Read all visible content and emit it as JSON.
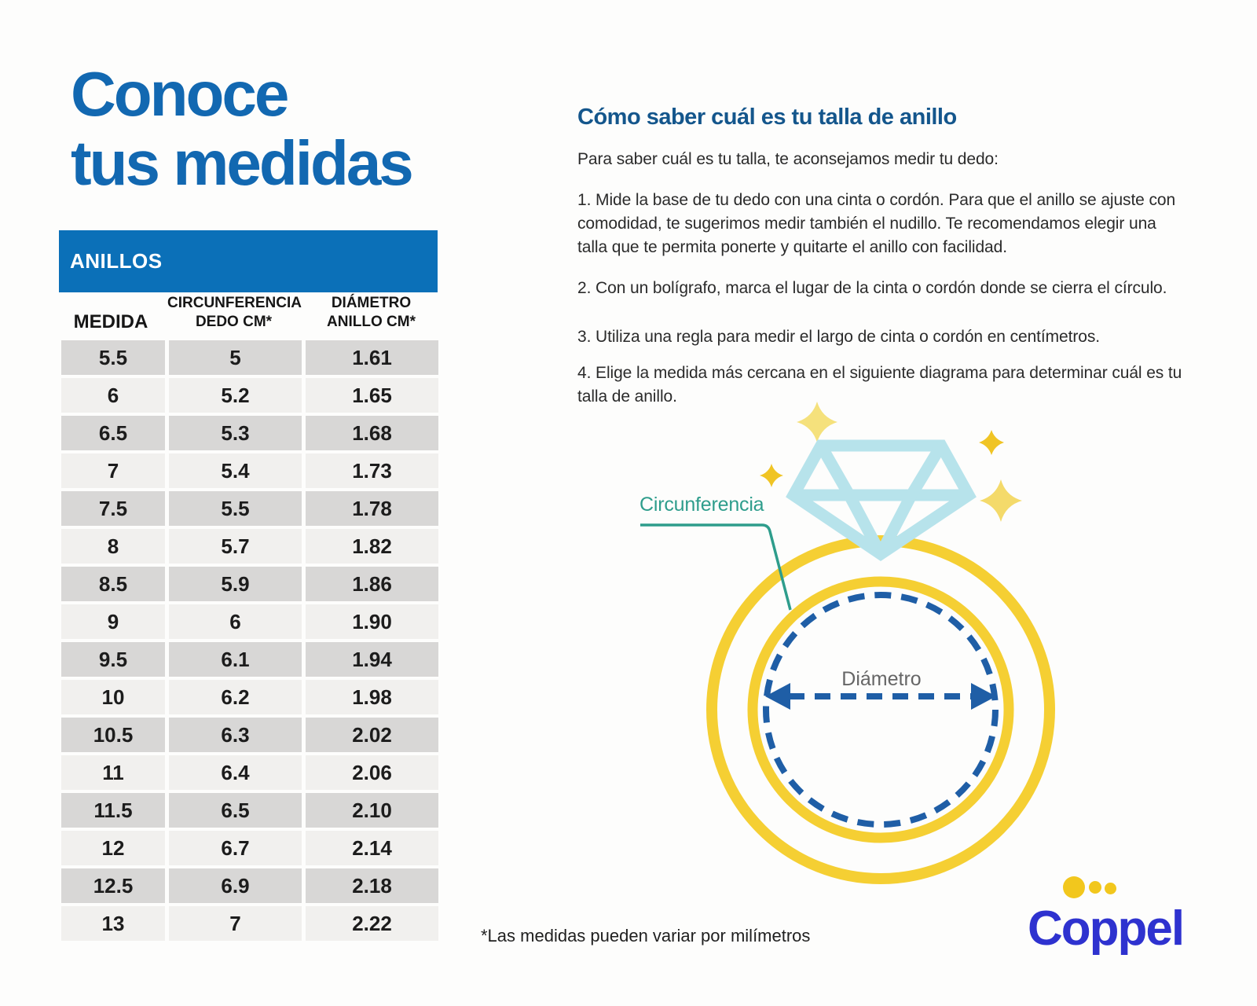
{
  "left": {
    "title": "Conoce\ntus medidas",
    "table": {
      "band_label": "ANILLOS",
      "columns": [
        "MEDIDA",
        "CIRCUNFERENCIA\nDEDO CM*",
        "DIÁMETRO\nANILLO CM*"
      ],
      "rows": [
        [
          "5.5",
          "5",
          "1.61"
        ],
        [
          "6",
          "5.2",
          "1.65"
        ],
        [
          "6.5",
          "5.3",
          "1.68"
        ],
        [
          "7",
          "5.4",
          "1.73"
        ],
        [
          "7.5",
          "5.5",
          "1.78"
        ],
        [
          "8",
          "5.7",
          "1.82"
        ],
        [
          "8.5",
          "5.9",
          "1.86"
        ],
        [
          "9",
          "6",
          "1.90"
        ],
        [
          "9.5",
          "6.1",
          "1.94"
        ],
        [
          "10",
          "6.2",
          "1.98"
        ],
        [
          "10.5",
          "6.3",
          "2.02"
        ],
        [
          "11",
          "6.4",
          "2.06"
        ],
        [
          "11.5",
          "6.5",
          "2.10"
        ],
        [
          "12",
          "6.7",
          "2.14"
        ],
        [
          "12.5",
          "6.9",
          "2.18"
        ],
        [
          "13",
          "7",
          "2.22"
        ]
      ]
    }
  },
  "right": {
    "heading": "Cómo saber cuál es tu talla de anillo",
    "intro": "Para saber cuál es tu talla, te aconsejamos medir tu dedo:",
    "step1": "1. Mide la base de tu dedo con una cinta o cordón. Para que el anillo se ajuste con comodidad, te sugerimos medir también el nudillo. Te recomendamos elegir una talla que te permita ponerte y quitarte el anillo con facilidad.",
    "step2": "2. Con un bolígrafo, marca el lugar de la cinta o cordón donde se cierra el círculo.",
    "step3": "3. Utiliza una regla para medir el largo de cinta o cordón en centímetros.",
    "step4": "4. Elige la medida más cercana en el siguiente diagrama para determinar cuál es tu talla de anillo.",
    "diagram": {
      "circumference_label": "Circunferencia",
      "diameter_label": "Diámetro"
    },
    "footnote": "*Las medidas pueden variar por milímetros",
    "logo_text": "Coppel"
  },
  "colors": {
    "title_blue": "#1268b1",
    "band_blue": "#0b70b8",
    "heading_blue": "#14568c",
    "row_dark": "#d8d7d6",
    "row_light": "#f1f0ee",
    "ring_yellow": "#f5cf33",
    "diamond_light_blue": "#b7e3eb",
    "dashed_blue": "#1f5ea6",
    "teal": "#2e9d8c",
    "sparkle_gold": "#f0c424",
    "sparkle_light": "#f5e17c",
    "logo_blue": "#2e32cf",
    "logo_dot_yellow": "#f2c71d",
    "diameter_label_gray": "#666666"
  }
}
